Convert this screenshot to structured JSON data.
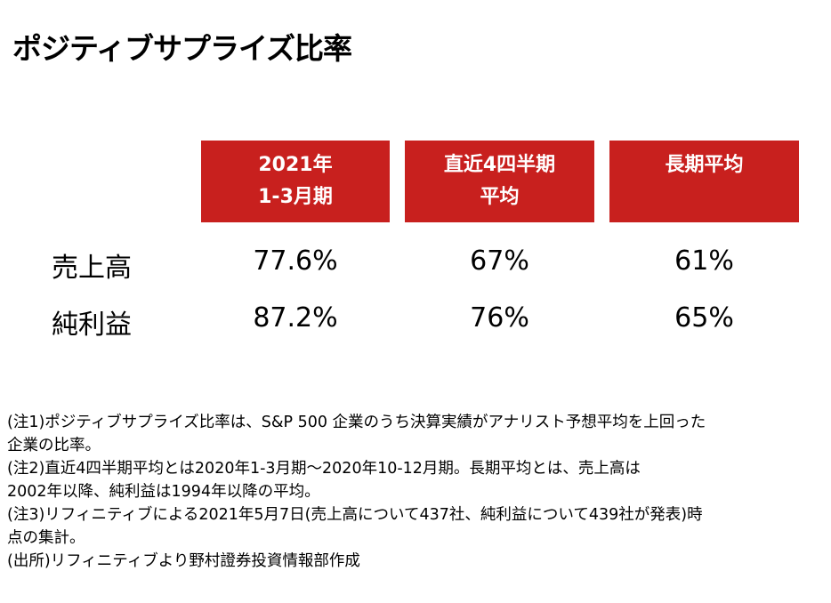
{
  "title": "ポジティブサプライズ比率",
  "table": {
    "headers": [
      {
        "line1": "2021年",
        "line2": "1-3月期"
      },
      {
        "line1": "直近4四半期",
        "line2": "平均"
      },
      {
        "line1": "長期平均",
        "line2": ""
      }
    ],
    "rows": [
      {
        "label": "売上高",
        "values": [
          "77.6%",
          "67%",
          "61%"
        ]
      },
      {
        "label": "純利益",
        "values": [
          "87.2%",
          "76%",
          "65%"
        ]
      }
    ]
  },
  "notes": [
    "(注1)ポジティブサプライズ比率は、S&P 500 企業のうち決算実績がアナリスト予想平均を上回った",
    "企業の比率。",
    "(注2)直近4四半期平均とは2020年1-3月期～2020年10-12月期。長期平均とは、売上高は",
    "2002年以降、純利益は1994年以降の平均。",
    "(注3)リフィニティブによる2021年5月7日(売上高について437社、純利益について439社が発表)時",
    "点の集計。",
    "(出所)リフィニティブより野村證券投資情報部作成"
  ]
}
